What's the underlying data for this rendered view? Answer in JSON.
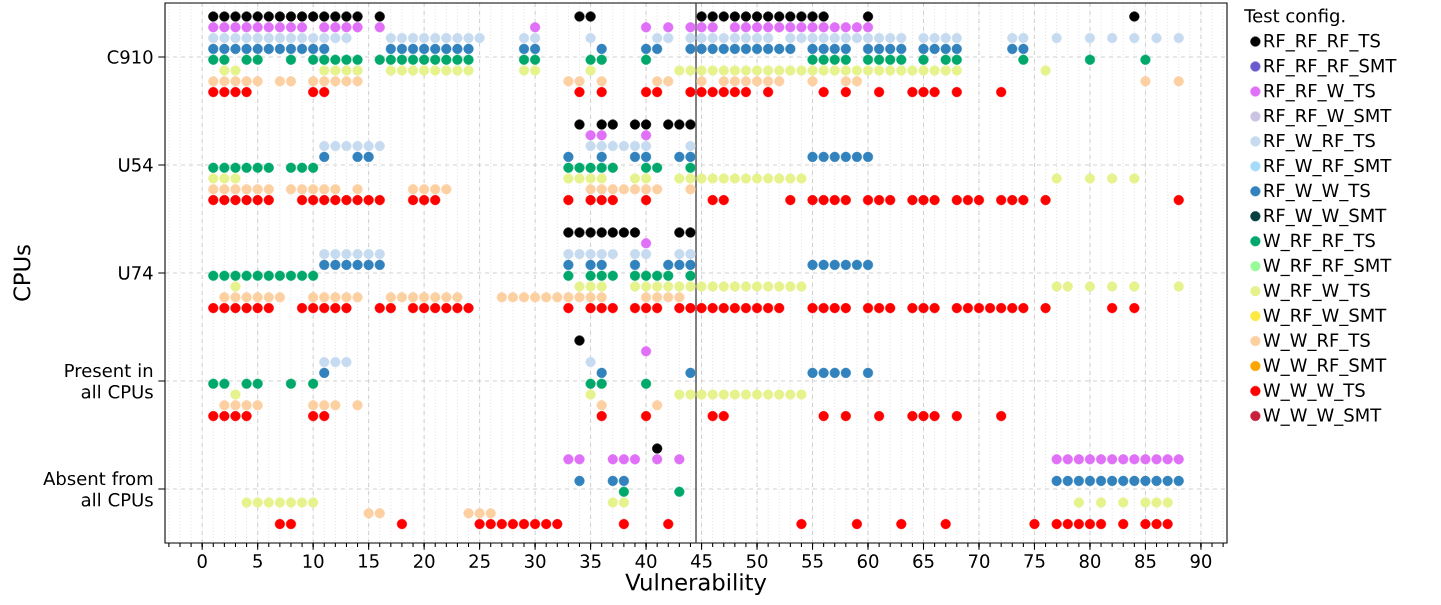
{
  "chart_data": {
    "type": "scatter",
    "orientation": "horizontal",
    "xlabel": "Vulnerability",
    "ylabel": "CPUs",
    "legend_title": "Test config.",
    "categories": [
      "C910",
      "U54",
      "U74",
      "Present in all CPUs",
      "Absent from all CPUs"
    ],
    "xlim": [
      -3.35,
      92.35
    ],
    "xticks": [
      0,
      5,
      10,
      15,
      20,
      25,
      30,
      35,
      40,
      45,
      50,
      55,
      60,
      65,
      70,
      75,
      80,
      85,
      90
    ],
    "grid": true,
    "legend": "right",
    "marker": "circle",
    "ref_lines": [
      {
        "axis": "x",
        "value": 44.5,
        "color": "#404040"
      }
    ],
    "series": [
      {
        "name": "RF_RF_RF_TS",
        "color": "#000000",
        "values": [
          1,
          2,
          3,
          4,
          5,
          6,
          7,
          8,
          9,
          10,
          11,
          12,
          13,
          14,
          16,
          34,
          35,
          45,
          46,
          47,
          48,
          49,
          50,
          51,
          52,
          53,
          54,
          55,
          56,
          60,
          84,
          34,
          36,
          37,
          39,
          40,
          42,
          43,
          44,
          33,
          34,
          35,
          36,
          37,
          38,
          39,
          43,
          44,
          34,
          41
        ],
        "x": [
          "C910",
          "C910",
          "C910",
          "C910",
          "C910",
          "C910",
          "C910",
          "C910",
          "C910",
          "C910",
          "C910",
          "C910",
          "C910",
          "C910",
          "C910",
          "C910",
          "C910",
          "C910",
          "C910",
          "C910",
          "C910",
          "C910",
          "C910",
          "C910",
          "C910",
          "C910",
          "C910",
          "C910",
          "C910",
          "C910",
          "C910",
          "U54",
          "U54",
          "U54",
          "U54",
          "U54",
          "U54",
          "U54",
          "U54",
          "U74",
          "U74",
          "U74",
          "U74",
          "U74",
          "U74",
          "U74",
          "U74",
          "U74",
          "Present in all CPUs",
          "Absent from all CPUs"
        ]
      },
      {
        "name": "RF_RF_RF_SMT",
        "color": "#6a5acd",
        "values": [
          null,
          null,
          null,
          null,
          null
        ]
      },
      {
        "name": "RF_RF_W_TS",
        "color": "#e070f8",
        "values": [
          1,
          2,
          3,
          4,
          5,
          6,
          7,
          8,
          9,
          11,
          12,
          13,
          14,
          16,
          30,
          40,
          42,
          44,
          45,
          46,
          48,
          49,
          50,
          51,
          52,
          53,
          54,
          55,
          56,
          57,
          58,
          59,
          60,
          35,
          36,
          40,
          40,
          40,
          33,
          34,
          37,
          38,
          39,
          41,
          43,
          77,
          78,
          79,
          80,
          81,
          82,
          83,
          84,
          85,
          86,
          87,
          88
        ],
        "x": [
          "C910",
          "C910",
          "C910",
          "C910",
          "C910",
          "C910",
          "C910",
          "C910",
          "C910",
          "C910",
          "C910",
          "C910",
          "C910",
          "C910",
          "C910",
          "C910",
          "C910",
          "C910",
          "C910",
          "C910",
          "C910",
          "C910",
          "C910",
          "C910",
          "C910",
          "C910",
          "C910",
          "C910",
          "C910",
          "C910",
          "C910",
          "C910",
          "C910",
          "U54",
          "U54",
          "U54",
          "U74",
          "Present in all CPUs",
          "Absent from all CPUs",
          "Absent from all CPUs",
          "Absent from all CPUs",
          "Absent from all CPUs",
          "Absent from all CPUs",
          "Absent from all CPUs",
          "Absent from all CPUs",
          "Absent from all CPUs",
          "Absent from all CPUs",
          "Absent from all CPUs",
          "Absent from all CPUs",
          "Absent from all CPUs",
          "Absent from all CPUs",
          "Absent from all CPUs",
          "Absent from all CPUs",
          "Absent from all CPUs",
          "Absent from all CPUs",
          "Absent from all CPUs",
          "Absent from all CPUs"
        ]
      },
      {
        "name": "RF_RF_W_SMT",
        "color": "#cbc3e3",
        "values": [
          null,
          null,
          null,
          null,
          null
        ]
      },
      {
        "name": "RF_W_RF_TS",
        "color": "#c6dbef",
        "values": [
          1,
          2,
          3,
          4,
          5,
          6,
          7,
          8,
          9,
          10,
          11,
          12,
          13,
          17,
          18,
          19,
          20,
          21,
          22,
          23,
          24,
          25,
          29,
          30,
          35,
          41,
          42,
          44,
          45,
          46,
          47,
          48,
          49,
          50,
          51,
          53,
          54,
          55,
          56,
          57,
          58,
          59,
          60,
          61,
          62,
          63,
          65,
          66,
          67,
          68,
          73,
          74,
          77,
          80,
          82,
          84,
          86,
          88,
          11,
          12,
          13,
          14,
          15,
          16,
          35,
          36,
          37,
          38,
          39,
          40,
          44,
          11,
          12,
          13,
          14,
          15,
          16,
          33,
          34,
          35,
          36,
          37,
          39,
          40,
          43,
          44,
          11,
          12,
          13,
          35
        ],
        "x": [
          "C910",
          "C910",
          "C910",
          "C910",
          "C910",
          "C910",
          "C910",
          "C910",
          "C910",
          "C910",
          "C910",
          "C910",
          "C910",
          "C910",
          "C910",
          "C910",
          "C910",
          "C910",
          "C910",
          "C910",
          "C910",
          "C910",
          "C910",
          "C910",
          "C910",
          "C910",
          "C910",
          "C910",
          "C910",
          "C910",
          "C910",
          "C910",
          "C910",
          "C910",
          "C910",
          "C910",
          "C910",
          "C910",
          "C910",
          "C910",
          "C910",
          "C910",
          "C910",
          "C910",
          "C910",
          "C910",
          "C910",
          "C910",
          "C910",
          "C910",
          "C910",
          "C910",
          "C910",
          "C910",
          "C910",
          "C910",
          "C910",
          "C910",
          "U54",
          "U54",
          "U54",
          "U54",
          "U54",
          "U54",
          "U54",
          "U54",
          "U54",
          "U54",
          "U54",
          "U54",
          "U54",
          "U74",
          "U74",
          "U74",
          "U74",
          "U74",
          "U74",
          "U74",
          "U74",
          "U74",
          "U74",
          "U74",
          "U74",
          "U74",
          "U74",
          "U74",
          "Present in all CPUs",
          "Present in all CPUs",
          "Present in all CPUs",
          "Present in all CPUs"
        ]
      },
      {
        "name": "RF_W_RF_SMT",
        "color": "#a6dcfa",
        "values": [
          null,
          null,
          null,
          null,
          null
        ]
      },
      {
        "name": "RF_W_W_TS",
        "color": "#3182bd",
        "values": [
          1,
          2,
          3,
          4,
          5,
          6,
          7,
          8,
          9,
          10,
          11,
          17,
          18,
          19,
          20,
          21,
          22,
          23,
          24,
          29,
          30,
          36,
          40,
          41,
          44,
          45,
          46,
          47,
          48,
          49,
          50,
          51,
          52,
          53,
          55,
          56,
          57,
          58,
          60,
          61,
          62,
          63,
          65,
          66,
          67,
          68,
          73,
          74,
          11,
          14,
          15,
          33,
          36,
          39,
          40,
          43,
          44,
          55,
          56,
          57,
          58,
          59,
          60,
          11,
          12,
          13,
          14,
          15,
          16,
          33,
          35,
          36,
          39,
          42,
          43,
          44,
          55,
          56,
          57,
          58,
          59,
          60,
          11,
          36,
          44,
          55,
          56,
          57,
          58,
          60,
          34,
          37,
          38,
          77,
          78,
          79,
          80,
          81,
          82,
          83,
          84,
          85,
          86,
          87,
          88
        ],
        "x": [
          "C910",
          "C910",
          "C910",
          "C910",
          "C910",
          "C910",
          "C910",
          "C910",
          "C910",
          "C910",
          "C910",
          "C910",
          "C910",
          "C910",
          "C910",
          "C910",
          "C910",
          "C910",
          "C910",
          "C910",
          "C910",
          "C910",
          "C910",
          "C910",
          "C910",
          "C910",
          "C910",
          "C910",
          "C910",
          "C910",
          "C910",
          "C910",
          "C910",
          "C910",
          "C910",
          "C910",
          "C910",
          "C910",
          "C910",
          "C910",
          "C910",
          "C910",
          "C910",
          "C910",
          "C910",
          "C910",
          "C910",
          "C910",
          "U54",
          "U54",
          "U54",
          "U54",
          "U54",
          "U54",
          "U54",
          "U54",
          "U54",
          "U54",
          "U54",
          "U54",
          "U54",
          "U54",
          "U54",
          "U74",
          "U74",
          "U74",
          "U74",
          "U74",
          "U74",
          "U74",
          "U74",
          "U74",
          "U74",
          "U74",
          "U74",
          "U74",
          "U74",
          "U74",
          "U74",
          "U74",
          "U74",
          "U74",
          "Present in all CPUs",
          "Present in all CPUs",
          "Present in all CPUs",
          "Present in all CPUs",
          "Present in all CPUs",
          "Present in all CPUs",
          "Present in all CPUs",
          "Present in all CPUs",
          "Absent from all CPUs",
          "Absent from all CPUs",
          "Absent from all CPUs",
          "Absent from all CPUs",
          "Absent from all CPUs",
          "Absent from all CPUs",
          "Absent from all CPUs",
          "Absent from all CPUs",
          "Absent from all CPUs",
          "Absent from all CPUs",
          "Absent from all CPUs",
          "Absent from all CPUs",
          "Absent from all CPUs",
          "Absent from all CPUs",
          "Absent from all CPUs"
        ]
      },
      {
        "name": "RF_W_W_SMT",
        "color": "#084040",
        "values": [
          null,
          null,
          null,
          null,
          null
        ]
      },
      {
        "name": "W_RF_RF_TS",
        "color": "#00a86b",
        "values": [
          1,
          2,
          4,
          5,
          8,
          10,
          11,
          12,
          13,
          14,
          16,
          17,
          18,
          19,
          20,
          21,
          22,
          23,
          24,
          29,
          30,
          35,
          36,
          40,
          55,
          56,
          57,
          58,
          60,
          61,
          62,
          63,
          65,
          67,
          68,
          74,
          80,
          85,
          1,
          2,
          3,
          4,
          5,
          6,
          8,
          9,
          10,
          33,
          34,
          35,
          36,
          37,
          40,
          41,
          44,
          1,
          2,
          3,
          4,
          5,
          6,
          7,
          8,
          9,
          10,
          33,
          35,
          36,
          37,
          39,
          40,
          41,
          42,
          44,
          1,
          2,
          4,
          5,
          8,
          10,
          35,
          36,
          40,
          38,
          43
        ],
        "x": [
          "C910",
          "C910",
          "C910",
          "C910",
          "C910",
          "C910",
          "C910",
          "C910",
          "C910",
          "C910",
          "C910",
          "C910",
          "C910",
          "C910",
          "C910",
          "C910",
          "C910",
          "C910",
          "C910",
          "C910",
          "C910",
          "C910",
          "C910",
          "C910",
          "C910",
          "C910",
          "C910",
          "C910",
          "C910",
          "C910",
          "C910",
          "C910",
          "C910",
          "C910",
          "C910",
          "C910",
          "C910",
          "C910",
          "U54",
          "U54",
          "U54",
          "U54",
          "U54",
          "U54",
          "U54",
          "U54",
          "U54",
          "U54",
          "U54",
          "U54",
          "U54",
          "U54",
          "U54",
          "U54",
          "U54",
          "U74",
          "U74",
          "U74",
          "U74",
          "U74",
          "U74",
          "U74",
          "U74",
          "U74",
          "U74",
          "U74",
          "U74",
          "U74",
          "U74",
          "U74",
          "U74",
          "U74",
          "U74",
          "U74",
          "Present in all CPUs",
          "Present in all CPUs",
          "Present in all CPUs",
          "Present in all CPUs",
          "Present in all CPUs",
          "Present in all CPUs",
          "Present in all CPUs",
          "Present in all CPUs",
          "Present in all CPUs",
          "Absent from all CPUs",
          "Absent from all CPUs"
        ]
      },
      {
        "name": "W_RF_RF_SMT",
        "color": "#98fb98",
        "values": [
          null,
          null,
          null,
          null,
          null
        ]
      },
      {
        "name": "W_RF_W_TS",
        "color": "#e6f28c",
        "values": [
          2,
          3,
          11,
          12,
          13,
          14,
          17,
          18,
          19,
          20,
          21,
          22,
          23,
          24,
          29,
          30,
          35,
          43,
          44,
          45,
          46,
          47,
          48,
          49,
          50,
          51,
          52,
          53,
          54,
          55,
          56,
          57,
          58,
          59,
          60,
          61,
          62,
          63,
          64,
          65,
          66,
          67,
          68,
          76,
          1,
          2,
          3,
          33,
          34,
          35,
          36,
          39,
          40,
          43,
          44,
          45,
          46,
          47,
          48,
          49,
          50,
          51,
          52,
          53,
          54,
          77,
          80,
          82,
          84,
          3,
          34,
          35,
          36,
          39,
          40,
          41,
          42,
          43,
          44,
          45,
          46,
          47,
          48,
          49,
          50,
          51,
          52,
          53,
          54,
          77,
          78,
          80,
          82,
          84,
          88,
          3,
          35,
          43,
          44,
          45,
          46,
          47,
          48,
          49,
          50,
          51,
          52,
          53,
          54,
          4,
          5,
          6,
          7,
          8,
          9,
          10,
          37,
          38,
          79,
          81,
          83,
          85,
          86,
          87
        ],
        "x": [
          "C910",
          "C910",
          "C910",
          "C910",
          "C910",
          "C910",
          "C910",
          "C910",
          "C910",
          "C910",
          "C910",
          "C910",
          "C910",
          "C910",
          "C910",
          "C910",
          "C910",
          "C910",
          "C910",
          "C910",
          "C910",
          "C910",
          "C910",
          "C910",
          "C910",
          "C910",
          "C910",
          "C910",
          "C910",
          "C910",
          "C910",
          "C910",
          "C910",
          "C910",
          "C910",
          "C910",
          "C910",
          "C910",
          "C910",
          "C910",
          "C910",
          "C910",
          "C910",
          "C910",
          "U54",
          "U54",
          "U54",
          "U54",
          "U54",
          "U54",
          "U54",
          "U54",
          "U54",
          "U54",
          "U54",
          "U54",
          "U54",
          "U54",
          "U54",
          "U54",
          "U54",
          "U54",
          "U54",
          "U54",
          "U54",
          "U54",
          "U54",
          "U54",
          "U54",
          "U74",
          "U74",
          "U74",
          "U74",
          "U74",
          "U74",
          "U74",
          "U74",
          "U74",
          "U74",
          "U74",
          "U74",
          "U74",
          "U74",
          "U74",
          "U74",
          "U74",
          "U74",
          "U74",
          "U74",
          "U74",
          "U74",
          "U74",
          "U74",
          "U74",
          "U74",
          "Present in all CPUs",
          "Present in all CPUs",
          "Present in all CPUs",
          "Present in all CPUs",
          "Present in all CPUs",
          "Present in all CPUs",
          "Present in all CPUs",
          "Present in all CPUs",
          "Present in all CPUs",
          "Present in all CPUs",
          "Present in all CPUs",
          "Present in all CPUs",
          "Present in all CPUs",
          "Present in all CPUs",
          "Absent from all CPUs",
          "Absent from all CPUs",
          "Absent from all CPUs",
          "Absent from all CPUs",
          "Absent from all CPUs",
          "Absent from all CPUs",
          "Absent from all CPUs",
          "Absent from all CPUs",
          "Absent from all CPUs",
          "Absent from all CPUs",
          "Absent from all CPUs",
          "Absent from all CPUs",
          "Absent from all CPUs",
          "Absent from all CPUs",
          "Absent from all CPUs"
        ]
      },
      {
        "name": "W_RF_W_SMT",
        "color": "#fde941",
        "values": [
          null,
          null,
          null,
          null,
          null
        ]
      },
      {
        "name": "W_W_RF_TS",
        "color": "#fdd0a2",
        "values": [
          1,
          2,
          3,
          4,
          5,
          7,
          8,
          10,
          11,
          12,
          13,
          14,
          33,
          34,
          36,
          41,
          42,
          45,
          47,
          48,
          49,
          50,
          51,
          52,
          55,
          58,
          59,
          85,
          88,
          1,
          2,
          3,
          4,
          5,
          6,
          8,
          9,
          10,
          11,
          12,
          14,
          19,
          20,
          21,
          22,
          35,
          36,
          37,
          38,
          39,
          40,
          41,
          44,
          2,
          3,
          4,
          5,
          6,
          7,
          10,
          11,
          12,
          13,
          14,
          17,
          18,
          19,
          20,
          21,
          22,
          23,
          27,
          28,
          29,
          30,
          31,
          32,
          33,
          34,
          35,
          36,
          40,
          41,
          42,
          43,
          2,
          3,
          4,
          5,
          10,
          11,
          12,
          14,
          36,
          41,
          15,
          16,
          24,
          25,
          26
        ],
        "x": [
          "C910",
          "C910",
          "C910",
          "C910",
          "C910",
          "C910",
          "C910",
          "C910",
          "C910",
          "C910",
          "C910",
          "C910",
          "C910",
          "C910",
          "C910",
          "C910",
          "C910",
          "C910",
          "C910",
          "C910",
          "C910",
          "C910",
          "C910",
          "C910",
          "C910",
          "C910",
          "C910",
          "C910",
          "C910",
          "U54",
          "U54",
          "U54",
          "U54",
          "U54",
          "U54",
          "U54",
          "U54",
          "U54",
          "U54",
          "U54",
          "U54",
          "U54",
          "U54",
          "U54",
          "U54",
          "U54",
          "U54",
          "U54",
          "U54",
          "U54",
          "U54",
          "U54",
          "U54",
          "U74",
          "U74",
          "U74",
          "U74",
          "U74",
          "U74",
          "U74",
          "U74",
          "U74",
          "U74",
          "U74",
          "U74",
          "U74",
          "U74",
          "U74",
          "U74",
          "U74",
          "U74",
          "U74",
          "U74",
          "U74",
          "U74",
          "U74",
          "U74",
          "U74",
          "U74",
          "U74",
          "U74",
          "U74",
          "U74",
          "U74",
          "U74",
          "Present in all CPUs",
          "Present in all CPUs",
          "Present in all CPUs",
          "Present in all CPUs",
          "Present in all CPUs",
          "Present in all CPUs",
          "Present in all CPUs",
          "Present in all CPUs",
          "Present in all CPUs",
          "Present in all CPUs",
          "Absent from all CPUs",
          "Absent from all CPUs",
          "Absent from all CPUs",
          "Absent from all CPUs",
          "Absent from all CPUs"
        ]
      },
      {
        "name": "W_W_RF_SMT",
        "color": "#ffa500",
        "values": [
          null,
          null,
          null,
          null,
          null
        ]
      },
      {
        "name": "W_W_W_TS",
        "color": "#ff0000",
        "values": [
          1,
          2,
          3,
          4,
          10,
          11,
          34,
          36,
          40,
          41,
          44,
          45,
          46,
          47,
          48,
          49,
          51,
          56,
          58,
          61,
          64,
          65,
          66,
          68,
          72,
          1,
          2,
          3,
          4,
          5,
          6,
          9,
          10,
          11,
          12,
          13,
          14,
          15,
          16,
          19,
          20,
          21,
          33,
          35,
          36,
          37,
          40,
          46,
          47,
          53,
          55,
          56,
          57,
          58,
          60,
          61,
          62,
          64,
          65,
          66,
          68,
          69,
          70,
          72,
          73,
          74,
          76,
          88,
          1,
          2,
          3,
          4,
          5,
          6,
          9,
          10,
          11,
          12,
          13,
          16,
          17,
          19,
          20,
          21,
          22,
          23,
          24,
          33,
          35,
          36,
          37,
          39,
          40,
          41,
          43,
          44,
          45,
          46,
          47,
          48,
          49,
          50,
          51,
          52,
          55,
          56,
          57,
          58,
          60,
          61,
          62,
          64,
          65,
          66,
          68,
          69,
          70,
          71,
          72,
          73,
          74,
          76,
          82,
          84,
          1,
          2,
          3,
          4,
          10,
          11,
          36,
          40,
          46,
          47,
          56,
          58,
          61,
          64,
          65,
          66,
          68,
          72,
          7,
          8,
          18,
          25,
          26,
          27,
          28,
          29,
          30,
          31,
          32,
          38,
          42,
          54,
          59,
          63,
          67,
          75,
          77,
          78,
          79,
          80,
          81,
          83,
          85,
          86,
          87
        ],
        "x": [
          "C910",
          "C910",
          "C910",
          "C910",
          "C910",
          "C910",
          "C910",
          "C910",
          "C910",
          "C910",
          "C910",
          "C910",
          "C910",
          "C910",
          "C910",
          "C910",
          "C910",
          "C910",
          "C910",
          "C910",
          "C910",
          "C910",
          "C910",
          "C910",
          "C910",
          "U54",
          "U54",
          "U54",
          "U54",
          "U54",
          "U54",
          "U54",
          "U54",
          "U54",
          "U54",
          "U54",
          "U54",
          "U54",
          "U54",
          "U54",
          "U54",
          "U54",
          "U54",
          "U54",
          "U54",
          "U54",
          "U54",
          "U54",
          "U54",
          "U54",
          "U54",
          "U54",
          "U54",
          "U54",
          "U54",
          "U54",
          "U54",
          "U54",
          "U54",
          "U54",
          "U54",
          "U54",
          "U54",
          "U54",
          "U54",
          "U54",
          "U54",
          "U54",
          "U74",
          "U74",
          "U74",
          "U74",
          "U74",
          "U74",
          "U74",
          "U74",
          "U74",
          "U74",
          "U74",
          "U74",
          "U74",
          "U74",
          "U74",
          "U74",
          "U74",
          "U74",
          "U74",
          "U74",
          "U74",
          "U74",
          "U74",
          "U74",
          "U74",
          "U74",
          "U74",
          "U74",
          "U74",
          "U74",
          "U74",
          "U74",
          "U74",
          "U74",
          "U74",
          "U74",
          "U74",
          "U74",
          "U74",
          "U74",
          "U74",
          "U74",
          "U74",
          "U74",
          "U74",
          "U74",
          "U74",
          "U74",
          "U74",
          "U74",
          "U74",
          "U74",
          "U74",
          "U74",
          "U74",
          "U74",
          "Present in all CPUs",
          "Present in all CPUs",
          "Present in all CPUs",
          "Present in all CPUs",
          "Present in all CPUs",
          "Present in all CPUs",
          "Present in all CPUs",
          "Present in all CPUs",
          "Present in all CPUs",
          "Present in all CPUs",
          "Present in all CPUs",
          "Present in all CPUs",
          "Present in all CPUs",
          "Present in all CPUs",
          "Present in all CPUs",
          "Present in all CPUs",
          "Present in all CPUs",
          "Present in all CPUs",
          "Absent from all CPUs",
          "Absent from all CPUs",
          "Absent from all CPUs",
          "Absent from all CPUs",
          "Absent from all CPUs",
          "Absent from all CPUs",
          "Absent from all CPUs",
          "Absent from all CPUs",
          "Absent from all CPUs",
          "Absent from all CPUs",
          "Absent from all CPUs",
          "Absent from all CPUs",
          "Absent from all CPUs",
          "Absent from all CPUs",
          "Absent from all CPUs",
          "Absent from all CPUs",
          "Absent from all CPUs",
          "Absent from all CPUs",
          "Absent from all CPUs",
          "Absent from all CPUs",
          "Absent from all CPUs",
          "Absent from all CPUs",
          "Absent from all CPUs",
          "Absent from all CPUs",
          "Absent from all CPUs",
          "Absent from all CPUs",
          "Absent from all CPUs"
        ]
      },
      {
        "name": "W_W_W_SMT",
        "color": "#c8203c",
        "values": [
          null,
          null,
          null,
          null,
          null
        ]
      }
    ]
  }
}
